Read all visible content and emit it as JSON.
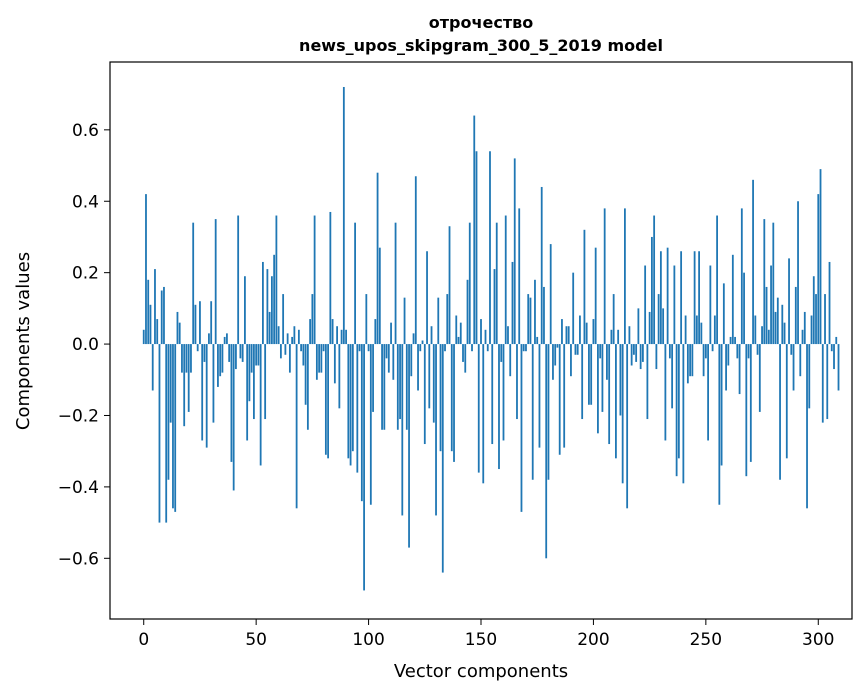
{
  "chart_data": {
    "type": "bar",
    "title": "отрочество",
    "subtitle": "news_upos_skipgram_300_5_2019 model",
    "xlabel": "Vector components",
    "ylabel": "Components values",
    "xlim": [
      -15,
      315
    ],
    "ylim": [
      -0.77,
      0.79
    ],
    "xticks": [
      0,
      50,
      100,
      150,
      200,
      250,
      300
    ],
    "xtick_labels": [
      "0",
      "50",
      "100",
      "150",
      "200",
      "250",
      "300"
    ],
    "yticks": [
      -0.6,
      -0.4,
      -0.2,
      0.0,
      0.2,
      0.4,
      0.6
    ],
    "ytick_labels": [
      "−0.6",
      "−0.4",
      "−0.2",
      "0.0",
      "0.2",
      "0.4",
      "0.6"
    ],
    "grid": false,
    "legend": "none",
    "bar_color": "#1f77b4",
    "x_start": 0,
    "values": [
      0.04,
      0.42,
      0.18,
      0.11,
      -0.13,
      0.21,
      0.07,
      -0.5,
      0.15,
      0.16,
      -0.5,
      -0.38,
      -0.22,
      -0.46,
      -0.47,
      0.09,
      0.06,
      -0.08,
      -0.23,
      -0.08,
      -0.19,
      -0.08,
      0.34,
      0.11,
      -0.02,
      0.12,
      -0.27,
      -0.05,
      -0.29,
      0.03,
      0.12,
      -0.22,
      0.35,
      -0.12,
      -0.09,
      -0.08,
      0.02,
      0.03,
      -0.05,
      -0.33,
      -0.41,
      -0.07,
      0.36,
      -0.04,
      -0.05,
      0.19,
      -0.27,
      -0.16,
      -0.08,
      -0.21,
      -0.06,
      -0.06,
      -0.34,
      0.23,
      -0.21,
      0.21,
      0.09,
      0.19,
      0.25,
      0.36,
      0.05,
      -0.04,
      0.14,
      -0.03,
      0.03,
      -0.08,
      0.02,
      0.05,
      -0.46,
      0.04,
      -0.02,
      -0.06,
      -0.17,
      -0.24,
      0.07,
      0.14,
      0.36,
      -0.1,
      -0.08,
      -0.08,
      -0.02,
      -0.31,
      -0.32,
      0.37,
      0.07,
      -0.11,
      0.05,
      -0.18,
      0.04,
      0.72,
      0.04,
      -0.32,
      -0.34,
      -0.3,
      0.34,
      -0.36,
      -0.02,
      -0.44,
      -0.69,
      0.14,
      -0.02,
      -0.45,
      -0.19,
      0.07,
      0.48,
      0.27,
      -0.24,
      -0.24,
      -0.04,
      -0.08,
      0.06,
      -0.1,
      0.34,
      -0.24,
      -0.21,
      -0.48,
      0.13,
      -0.24,
      -0.57,
      -0.09,
      0.03,
      0.47,
      -0.13,
      -0.02,
      0.01,
      -0.28,
      0.26,
      -0.18,
      0.05,
      -0.22,
      -0.48,
      0.13,
      -0.3,
      -0.64,
      -0.02,
      0.14,
      0.33,
      -0.3,
      -0.33,
      0.08,
      0.02,
      0.06,
      -0.05,
      -0.08,
      0.18,
      0.34,
      -0.02,
      0.64,
      0.54,
      -0.36,
      0.07,
      -0.39,
      0.04,
      -0.02,
      0.54,
      -0.28,
      0.21,
      0.34,
      -0.35,
      -0.05,
      -0.27,
      0.36,
      0.05,
      -0.09,
      0.23,
      0.52,
      -0.21,
      0.38,
      -0.47,
      -0.02,
      -0.02,
      0.14,
      0.13,
      -0.38,
      0.18,
      0.02,
      -0.29,
      0.44,
      0.16,
      -0.6,
      -0.38,
      0.28,
      -0.1,
      -0.06,
      -0.01,
      -0.31,
      0.07,
      -0.29,
      0.05,
      0.05,
      -0.09,
      0.2,
      -0.03,
      -0.03,
      0.08,
      -0.21,
      0.32,
      0.06,
      -0.17,
      -0.17,
      0.07,
      0.27,
      -0.25,
      -0.04,
      -0.19,
      0.38,
      -0.1,
      -0.28,
      0.04,
      0.14,
      -0.32,
      0.04,
      -0.2,
      -0.39,
      0.38,
      -0.46,
      0.05,
      -0.06,
      -0.03,
      -0.05,
      0.1,
      -0.07,
      -0.05,
      0.22,
      -0.21,
      0.09,
      0.3,
      0.36,
      -0.07,
      0.14,
      0.26,
      0.1,
      -0.27,
      0.27,
      -0.04,
      -0.18,
      0.22,
      -0.37,
      -0.32,
      0.26,
      -0.39,
      0.08,
      -0.11,
      -0.09,
      -0.09,
      0.26,
      0.08,
      0.26,
      0.06,
      -0.09,
      -0.04,
      -0.27,
      0.22,
      -0.02,
      0.08,
      0.36,
      -0.45,
      -0.34,
      0.17,
      -0.13,
      -0.06,
      0.02,
      0.25,
      0.02,
      -0.04,
      -0.14,
      0.38,
      0.2,
      -0.37,
      -0.04,
      -0.33,
      0.46,
      0.08,
      -0.03,
      -0.19,
      0.05,
      0.35,
      0.16,
      0.04,
      0.22,
      0.34,
      0.09,
      0.13,
      -0.38,
      0.11,
      0.06,
      -0.32,
      0.24,
      -0.03,
      -0.13,
      0.16,
      0.4,
      -0.09,
      0.04,
      0.09,
      -0.46,
      -0.18,
      0.08,
      0.19,
      0.14,
      0.42,
      0.49,
      -0.22,
      0.14,
      -0.21,
      0.23,
      -0.02,
      -0.07,
      0.02,
      -0.13
    ]
  }
}
